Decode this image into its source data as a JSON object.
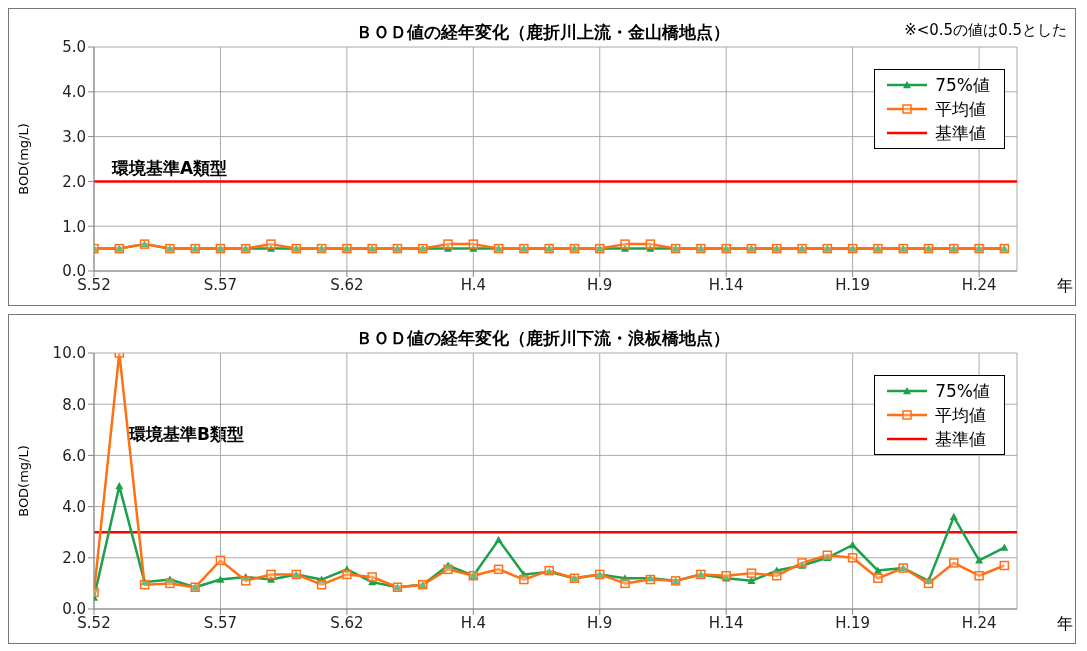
{
  "chart_data": [
    {
      "type": "line",
      "title": "ＢＯＤ値の経年変化（鹿折川上流・金山橋地点）",
      "xlabel": "年",
      "ylabel": "BOD(mg/L)",
      "categories": [
        "S.52",
        null,
        null,
        null,
        null,
        "S.57",
        null,
        null,
        null,
        null,
        "S.62",
        null,
        null,
        null,
        null,
        "H.4",
        null,
        null,
        null,
        null,
        "H.9",
        null,
        null,
        null,
        null,
        "H.14",
        null,
        null,
        null,
        null,
        "H.19",
        null,
        null,
        null,
        null,
        "H.24",
        null
      ],
      "ylim": [
        0,
        5
      ],
      "yticks": [
        {
          "value": 0,
          "label": "0.0"
        },
        {
          "value": 1,
          "label": "1.0"
        },
        {
          "value": 2,
          "label": "2.0"
        },
        {
          "value": 3,
          "label": "3.0"
        },
        {
          "value": 4,
          "label": "4.0"
        },
        {
          "value": 5,
          "label": "5.0"
        }
      ],
      "series": [
        {
          "name": "75%値",
          "color": "#1ca04c",
          "marker": "triangle",
          "values": [
            0.5,
            0.5,
            0.6,
            0.5,
            0.5,
            0.5,
            0.5,
            0.5,
            0.5,
            0.5,
            0.5,
            0.5,
            0.5,
            0.5,
            0.5,
            0.5,
            0.5,
            0.5,
            0.5,
            0.5,
            0.5,
            0.5,
            0.5,
            0.5,
            0.5,
            0.5,
            0.5,
            0.5,
            0.5,
            0.5,
            0.5,
            0.5,
            0.5,
            0.5,
            0.5,
            0.5,
            0.5
          ]
        },
        {
          "name": "平均値",
          "color": "#ff7014",
          "marker": "square",
          "values": [
            0.5,
            0.5,
            0.6,
            0.5,
            0.5,
            0.5,
            0.5,
            0.6,
            0.5,
            0.5,
            0.5,
            0.5,
            0.5,
            0.5,
            0.6,
            0.6,
            0.5,
            0.5,
            0.5,
            0.5,
            0.5,
            0.6,
            0.6,
            0.5,
            0.5,
            0.5,
            0.5,
            0.5,
            0.5,
            0.5,
            0.5,
            0.5,
            0.5,
            0.5,
            0.5,
            0.5,
            0.5
          ]
        }
      ],
      "ref_lines": [
        {
          "axis": "y",
          "value": 2,
          "label": "基準値",
          "color": "#ff0000"
        }
      ],
      "annotations": [
        {
          "text": "環境基準A類型",
          "y": 2
        },
        "※<0.5の値は0.5とした"
      ],
      "grid": true,
      "legend": "top right",
      "line_style": "solid"
    },
    {
      "type": "line",
      "title": "ＢＯＤ値の経年変化（鹿折川下流・浪板橋地点）",
      "xlabel": "年",
      "ylabel": "BOD(mg/L)",
      "categories": [
        "S.52",
        null,
        null,
        null,
        null,
        "S.57",
        null,
        null,
        null,
        null,
        "S.62",
        null,
        null,
        null,
        null,
        "H.4",
        null,
        null,
        null,
        null,
        "H.9",
        null,
        null,
        null,
        null,
        "H.14",
        null,
        null,
        null,
        null,
        "H.19",
        null,
        null,
        null,
        null,
        "H.24",
        null
      ],
      "ylim": [
        0,
        10
      ],
      "yticks": [
        {
          "value": 0,
          "label": "0.0"
        },
        {
          "value": 2,
          "label": "2.0"
        },
        {
          "value": 4,
          "label": "4.0"
        },
        {
          "value": 6,
          "label": "6.0"
        },
        {
          "value": 8,
          "label": "8.0"
        },
        {
          "value": 10,
          "label": "10.0"
        }
      ],
      "series": [
        {
          "name": "75%値",
          "color": "#1ca04c",
          "marker": "triangle",
          "values": [
            0.45,
            4.8,
            1.05,
            1.15,
            0.85,
            1.15,
            1.25,
            1.15,
            1.35,
            1.15,
            1.55,
            1.05,
            0.85,
            0.95,
            1.7,
            1.3,
            2.7,
            1.35,
            1.45,
            1.2,
            1.35,
            1.2,
            1.2,
            1.1,
            1.35,
            1.2,
            1.1,
            1.5,
            1.7,
            2.0,
            2.5,
            1.5,
            1.6,
            1.1,
            3.6,
            1.9,
            2.4
          ]
        },
        {
          "name": "平均値",
          "color": "#ff7014",
          "marker": "square",
          "values": [
            0.65,
            10,
            0.95,
            1.0,
            0.85,
            1.9,
            1.1,
            1.35,
            1.35,
            0.95,
            1.35,
            1.25,
            0.85,
            0.95,
            1.55,
            1.3,
            1.55,
            1.15,
            1.5,
            1.2,
            1.35,
            1.0,
            1.15,
            1.1,
            1.35,
            1.3,
            1.4,
            1.3,
            1.8,
            2.1,
            2.0,
            1.2,
            1.6,
            1.0,
            1.8,
            1.3,
            1.7
          ]
        }
      ],
      "ref_lines": [
        {
          "axis": "y",
          "value": 3,
          "label": "基準値",
          "color": "#ff0000"
        }
      ],
      "annotations": [
        "環境基準B類型"
      ],
      "grid": true,
      "legend": "top right",
      "line_style": "solid"
    }
  ]
}
